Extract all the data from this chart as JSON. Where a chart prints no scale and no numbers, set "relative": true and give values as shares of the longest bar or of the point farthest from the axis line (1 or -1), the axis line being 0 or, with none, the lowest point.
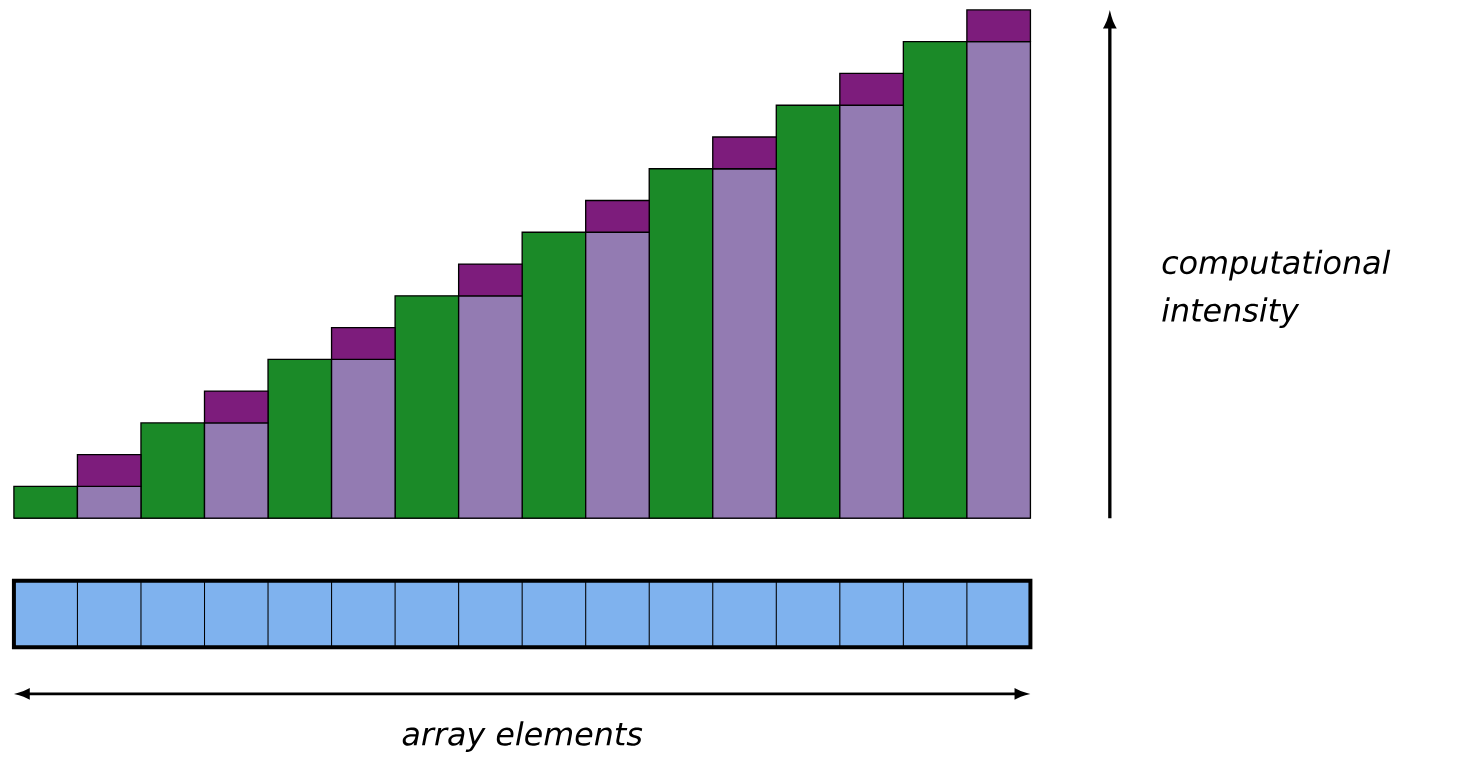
{
  "chart_data": {
    "type": "bar",
    "stacked": true,
    "relative": true,
    "ylabel": "computational intensity",
    "annotations": [
      "array elements"
    ],
    "categories": [
      null,
      null,
      null,
      null,
      null,
      null,
      null,
      null,
      null,
      null,
      null,
      null,
      null,
      null,
      null,
      null
    ],
    "series": [
      {
        "color": "#1b8a28",
        "values": [
          0.0625,
          null,
          0.1875,
          null,
          0.3125,
          null,
          0.4375,
          null,
          0.5625,
          null,
          0.6875,
          null,
          0.8125,
          null,
          0.9375,
          null
        ]
      },
      {
        "color": "#937bb2",
        "values": [
          null,
          0.0625,
          null,
          0.1875,
          null,
          0.3125,
          null,
          0.4375,
          null,
          0.5625,
          null,
          0.6875,
          null,
          0.8125,
          null,
          0.9375
        ]
      },
      {
        "color": "#7d1c7c",
        "values": [
          null,
          0.0625,
          null,
          0.0625,
          null,
          0.0625,
          null,
          0.0625,
          null,
          0.0625,
          null,
          0.0625,
          null,
          0.0625,
          null,
          0.0625
        ]
      }
    ]
  }
}
